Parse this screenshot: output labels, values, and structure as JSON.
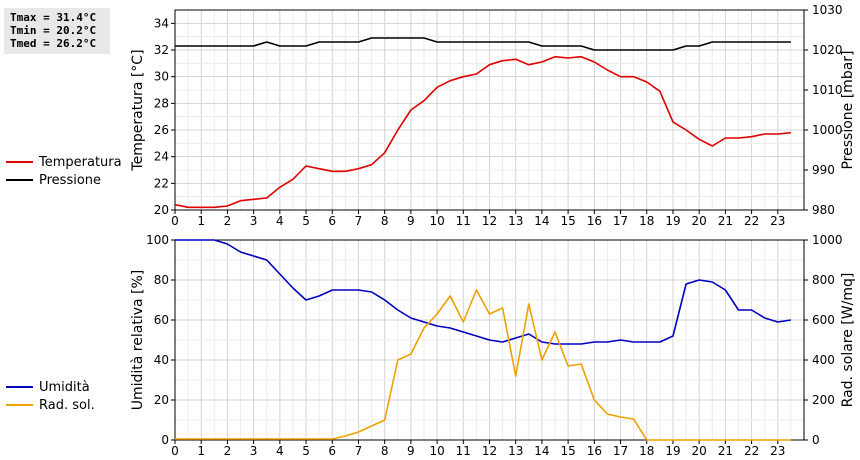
{
  "stats": {
    "tmax": "Tmax = 31.4°C",
    "tmin": "Tmin = 20.2°C",
    "tmed": "Tmed = 26.2°C"
  },
  "chart_data": [
    {
      "type": "line",
      "x_ticks": [
        "0",
        "1",
        "2",
        "3",
        "4",
        "5",
        "6",
        "7",
        "8",
        "9",
        "10",
        "11",
        "12",
        "13",
        "14",
        "15",
        "16",
        "17",
        "18",
        "19",
        "20",
        "21",
        "22",
        "23"
      ],
      "xlim": [
        0,
        24
      ],
      "ylabel": "Temperatura [°C]",
      "ylim": [
        20,
        35
      ],
      "y_ticks": [
        20,
        22,
        24,
        26,
        28,
        30,
        32,
        34
      ],
      "y2label": "Pressione [mbar]",
      "y2lim": [
        980,
        1030
      ],
      "y2_ticks": [
        980,
        990,
        1000,
        1010,
        1020,
        1030
      ],
      "grid": true,
      "legend_placement": "left",
      "series": [
        {
          "name": "Temperatura",
          "axis": "left",
          "color": "#e00000",
          "x": [
            0,
            0.5,
            1,
            1.5,
            2,
            2.5,
            3,
            3.5,
            4,
            4.5,
            5,
            5.5,
            6,
            6.5,
            7,
            7.5,
            8,
            8.5,
            9,
            9.5,
            10,
            10.5,
            11,
            11.5,
            12,
            12.5,
            13,
            13.5,
            14,
            14.5,
            15,
            15.5,
            16,
            16.5,
            17,
            17.5,
            18,
            18.5,
            19,
            19.5,
            20,
            20.5,
            21,
            21.5,
            22,
            22.5,
            23,
            23.5
          ],
          "values": [
            20.4,
            20.2,
            20.2,
            20.2,
            20.3,
            20.7,
            20.8,
            20.9,
            21.7,
            22.3,
            23.3,
            23.1,
            22.9,
            22.9,
            23.1,
            23.4,
            24.3,
            26.0,
            27.5,
            28.2,
            29.2,
            29.7,
            30.0,
            30.2,
            30.9,
            31.2,
            31.3,
            30.9,
            31.1,
            31.5,
            31.4,
            31.5,
            31.1,
            30.5,
            30.0,
            30.0,
            29.6,
            28.9,
            26.6,
            26.0,
            25.3,
            24.8,
            25.4,
            25.4,
            25.5,
            25.7,
            25.7,
            25.8
          ]
        },
        {
          "name": "Pressione",
          "axis": "right",
          "color": "#000000",
          "x": [
            0,
            0.5,
            1,
            1.5,
            2,
            2.5,
            3,
            3.5,
            4,
            4.5,
            5,
            5.5,
            6,
            6.5,
            7,
            7.5,
            8,
            8.5,
            9,
            9.5,
            10,
            10.5,
            11,
            11.5,
            12,
            12.5,
            13,
            13.5,
            14,
            14.5,
            15,
            15.5,
            16,
            16.5,
            17,
            17.5,
            18,
            18.5,
            19,
            19.5,
            20,
            20.5,
            21,
            21.5,
            22,
            22.5,
            23,
            23.5
          ],
          "values": [
            1021,
            1021,
            1021,
            1021,
            1021,
            1021,
            1021,
            1022,
            1021,
            1021,
            1021,
            1022,
            1022,
            1022,
            1022,
            1023,
            1023,
            1023,
            1023,
            1023,
            1022,
            1022,
            1022,
            1022,
            1022,
            1022,
            1022,
            1022,
            1021,
            1021,
            1021,
            1021,
            1020,
            1020,
            1020,
            1020,
            1020,
            1020,
            1020,
            1021,
            1021,
            1022,
            1022,
            1022,
            1022,
            1022,
            1022,
            1022
          ]
        }
      ]
    },
    {
      "type": "line",
      "x_ticks": [
        "0",
        "1",
        "2",
        "3",
        "4",
        "5",
        "6",
        "7",
        "8",
        "9",
        "10",
        "11",
        "12",
        "13",
        "14",
        "15",
        "16",
        "17",
        "18",
        "19",
        "20",
        "21",
        "22",
        "23"
      ],
      "xlim": [
        0,
        24
      ],
      "ylabel": "Umidità relativa [%]",
      "ylim": [
        0,
        100
      ],
      "y_ticks": [
        0,
        20,
        40,
        60,
        80,
        100
      ],
      "y2label": "Rad. solare [W/mq]",
      "y2lim": [
        0,
        1000
      ],
      "y2_ticks": [
        0,
        200,
        400,
        600,
        800,
        1000
      ],
      "grid": true,
      "legend_placement": "left",
      "series": [
        {
          "name": "Umidità",
          "axis": "left",
          "color": "#0000c0",
          "x": [
            0,
            0.5,
            1,
            1.5,
            2,
            2.5,
            3,
            3.5,
            4,
            4.5,
            5,
            5.5,
            6,
            6.5,
            7,
            7.5,
            8,
            8.5,
            9,
            9.5,
            10,
            10.5,
            11,
            11.5,
            12,
            12.5,
            13,
            13.5,
            14,
            14.5,
            15,
            15.5,
            16,
            16.5,
            17,
            17.5,
            18,
            18.5,
            19,
            19.5,
            20,
            20.5,
            21,
            21.5,
            22,
            22.5,
            23,
            23.5
          ],
          "values": [
            100,
            100,
            100,
            100,
            98,
            94,
            92,
            90,
            83,
            76,
            70,
            72,
            75,
            75,
            75,
            74,
            70,
            65,
            61,
            59,
            57,
            56,
            54,
            52,
            50,
            49,
            51,
            53,
            49,
            48,
            48,
            48,
            49,
            49,
            50,
            49,
            49,
            49,
            52,
            78,
            80,
            79,
            75,
            65,
            65,
            61,
            59,
            60
          ]
        },
        {
          "name": "Rad. sol.",
          "axis": "right",
          "color": "#f0a000",
          "x": [
            0,
            0.5,
            1,
            1.5,
            2,
            2.5,
            3,
            3.5,
            4,
            4.5,
            5,
            5.5,
            6,
            6.5,
            7,
            7.5,
            8,
            8.5,
            9,
            9.5,
            10,
            10.5,
            11,
            11.5,
            12,
            12.5,
            13,
            13.5,
            14,
            14.5,
            15,
            15.5,
            16,
            16.5,
            17,
            17.5,
            18,
            18.5,
            19,
            19.5,
            20,
            20.5,
            21,
            21.5,
            22,
            22.5,
            23,
            23.5
          ],
          "values": [
            5,
            5,
            5,
            5,
            5,
            5,
            5,
            5,
            5,
            5,
            5,
            5,
            5,
            20,
            40,
            70,
            100,
            400,
            430,
            560,
            630,
            720,
            590,
            750,
            630,
            660,
            320,
            680,
            400,
            540,
            370,
            380,
            200,
            130,
            115,
            105,
            0,
            0,
            0,
            0,
            0,
            0,
            0,
            0,
            0,
            0,
            0,
            0
          ]
        }
      ]
    }
  ]
}
